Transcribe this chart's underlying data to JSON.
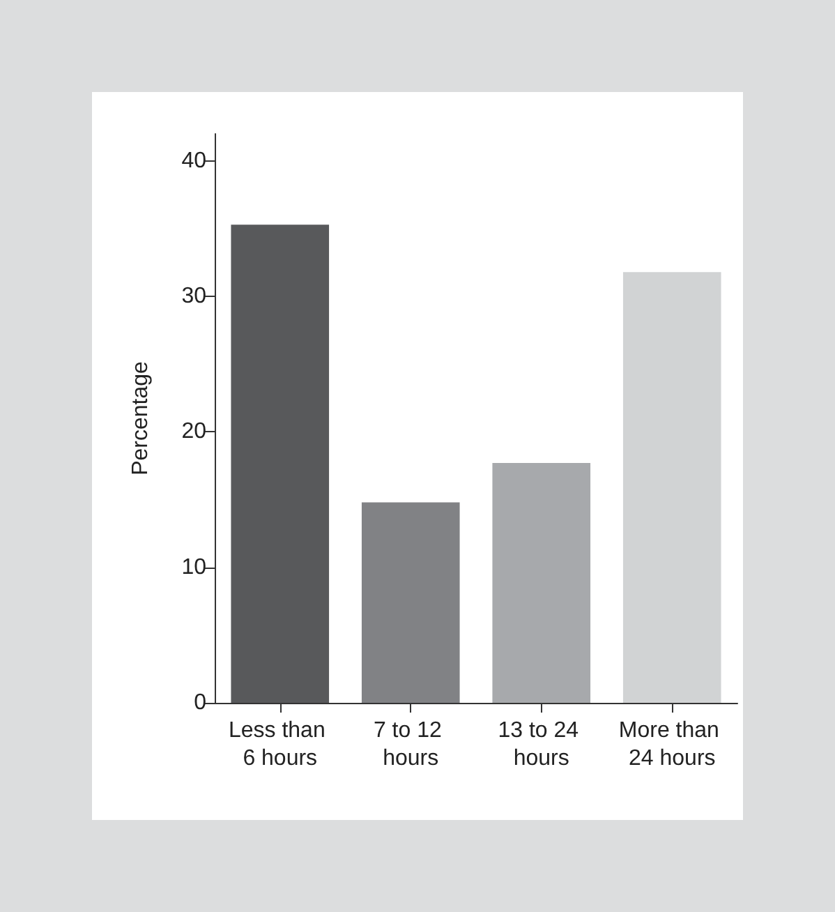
{
  "chart_data": {
    "type": "bar",
    "ylabel": "Percentage",
    "categories": [
      "Less than 6 hours",
      "7 to 12 hours",
      "13 to 24 hours",
      "More than 24 hours"
    ],
    "values": [
      35.3,
      14.8,
      17.7,
      31.8
    ],
    "colors": [
      "#58595b",
      "#818285",
      "#a7a9ac",
      "#d1d3d4"
    ],
    "ylim": [
      0,
      42
    ],
    "yticks": [
      0,
      10,
      20,
      30,
      40
    ],
    "grid": false
  }
}
